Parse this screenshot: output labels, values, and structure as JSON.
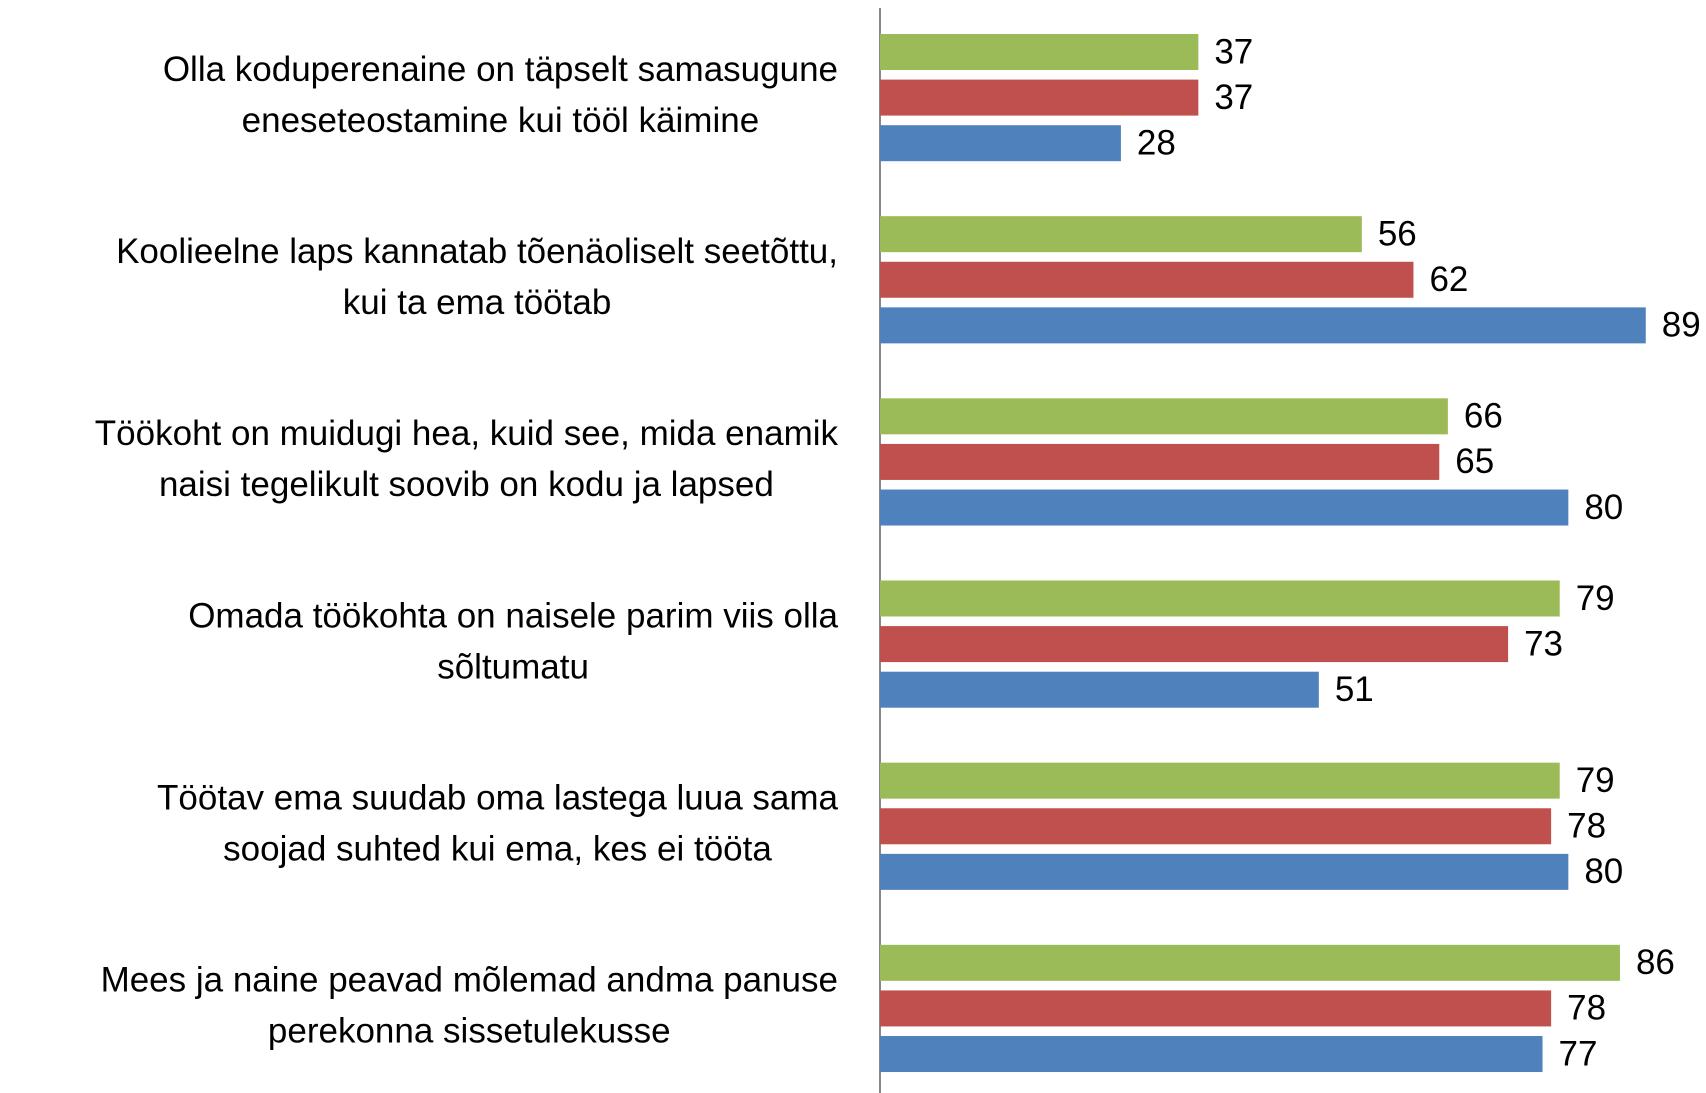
{
  "chart_data": {
    "type": "bar",
    "orientation": "horizontal",
    "categories": [
      [
        "Olla koduperenaine on täpselt samasugune",
        "eneseteostamine kui tööl käimine"
      ],
      [
        "Koolieelne laps kannatab tõenäoliselt seetõttu,",
        "kui ta ema töötab"
      ],
      [
        "Töökoht on muidugi hea, kuid see, mida enamik",
        "naisi tegelikult soovib on kodu ja lapsed"
      ],
      [
        "Omada töökohta on naisele parim viis olla",
        "sõltumatu"
      ],
      [
        "Töötav ema suudab oma lastega luua sama",
        "soojad suhted kui ema, kes ei tööta"
      ],
      [
        "Mees ja naine peavad mõlemad andma panuse",
        "perekonna sissetulekusse"
      ]
    ],
    "series": [
      {
        "color": "#9BBB59",
        "values": [
          37,
          56,
          66,
          79,
          79,
          86
        ]
      },
      {
        "color": "#C0504D",
        "values": [
          37,
          62,
          65,
          73,
          78,
          78
        ]
      },
      {
        "color": "#4F81BD",
        "values": [
          28,
          89,
          80,
          51,
          80,
          77
        ]
      }
    ],
    "xlim": [
      0,
      96
    ]
  }
}
